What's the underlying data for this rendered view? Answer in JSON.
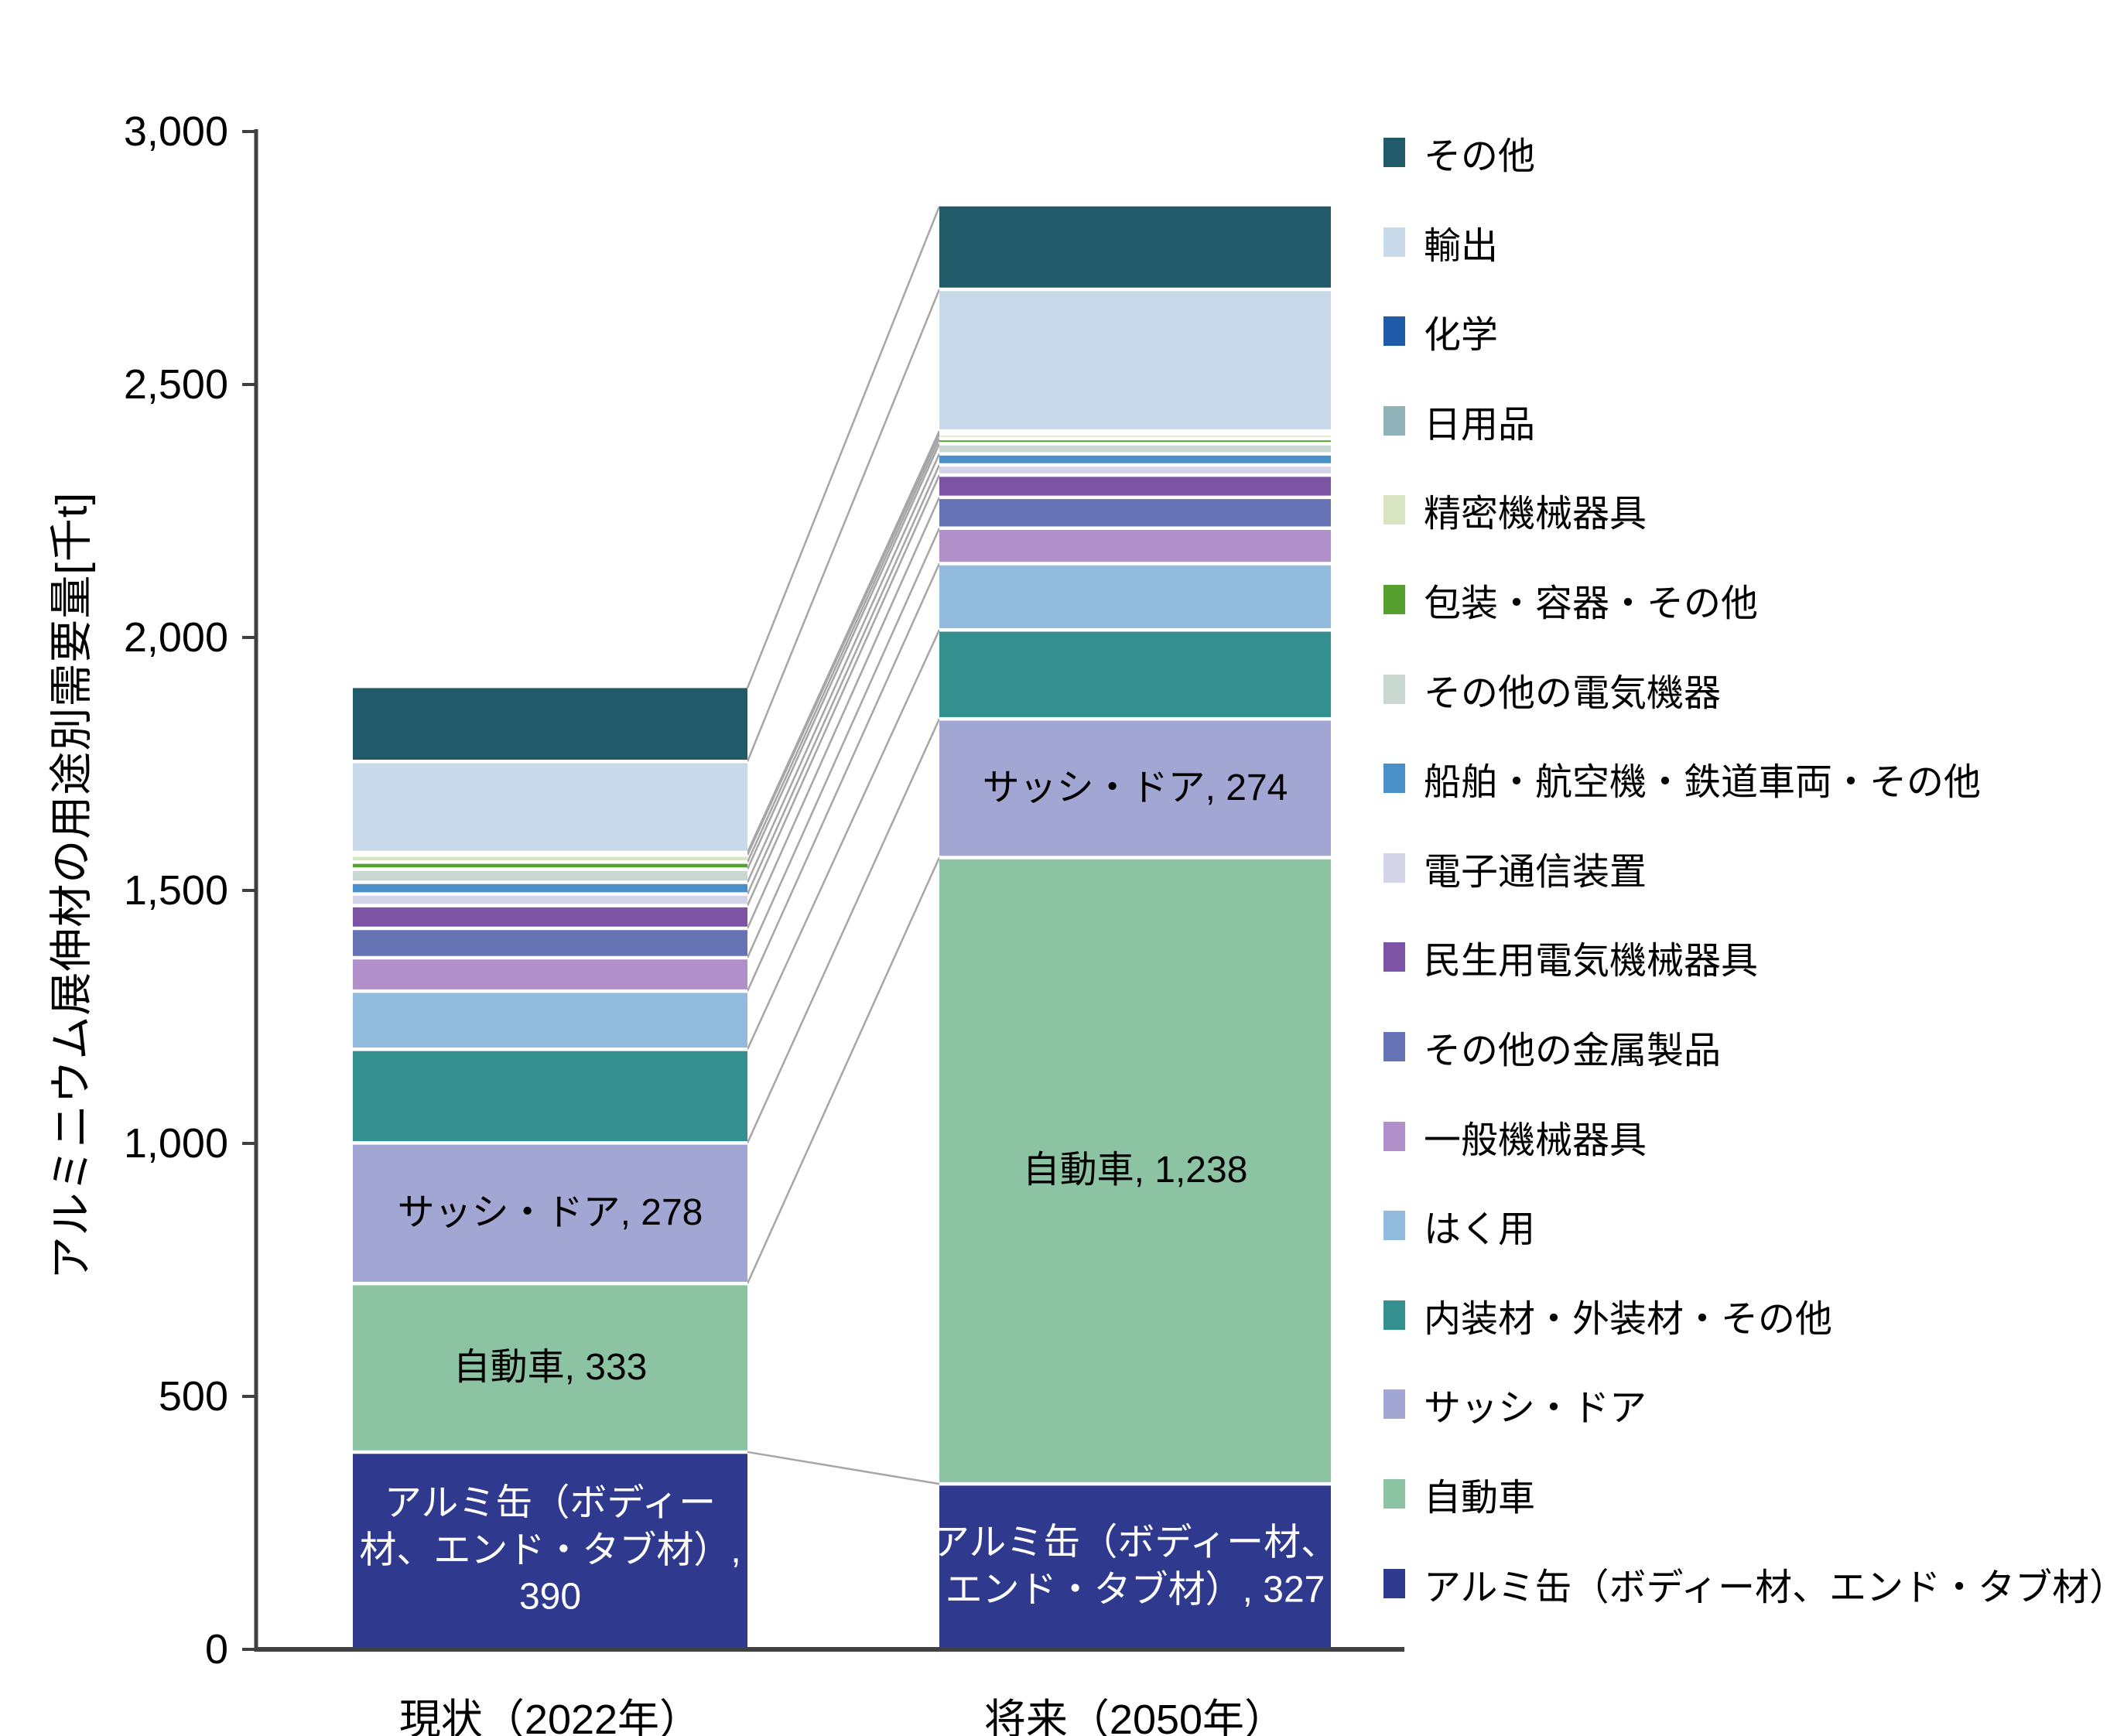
{
  "chart_data": {
    "type": "stacked-bar",
    "unit": "千t",
    "categories": [
      "現状（2022年）",
      "将来（2050年）"
    ],
    "yaxis": {
      "label": "アルミニウム展伸材の用途別需要量[千t]",
      "min": 0,
      "max": 3000,
      "step": 500,
      "tick_labels": [
        "0",
        "500",
        "1,000",
        "1,500",
        "2,000",
        "2,500",
        "3,000"
      ]
    },
    "series": [
      {
        "name": "アルミ缶（ボディー材、エンド・タブ材）",
        "color": "#2F3A8F",
        "values": [
          390,
          327
        ],
        "labeled": true
      },
      {
        "name": "自動車",
        "color": "#8CC3A2",
        "values": [
          333,
          1238
        ],
        "labeled": true
      },
      {
        "name": "サッシ・ドア",
        "color": "#A1A6D3",
        "values": [
          278,
          274
        ],
        "labeled": true
      },
      {
        "name": "内装材・外装材・その他",
        "color": "#33908F",
        "values": [
          185,
          176
        ]
      },
      {
        "name": "はく用",
        "color": "#92BADD",
        "values": [
          115,
          131
        ]
      },
      {
        "name": "一般機械器具",
        "color": "#B18FC9",
        "values": [
          66,
          70
        ]
      },
      {
        "name": "その他の金属製品",
        "color": "#6673B5",
        "values": [
          58,
          61
        ]
      },
      {
        "name": "民生用電気機械器具",
        "color": "#7D53A6",
        "values": [
          45,
          44
        ]
      },
      {
        "name": "電子通信装置",
        "color": "#D4D4E9",
        "values": [
          23,
          20
        ]
      },
      {
        "name": "船舶・航空機・鉄道車両・その他",
        "color": "#4A90C8",
        "values": [
          23,
          22
        ]
      },
      {
        "name": "その他の電気機器",
        "color": "#C9D9D2",
        "values": [
          26,
          20
        ]
      },
      {
        "name": "包装・容器・その他",
        "color": "#55A02F",
        "values": [
          14,
          10
        ]
      },
      {
        "name": "精密機械器具",
        "color": "#D9E5C2",
        "values": [
          14,
          9
        ]
      },
      {
        "name": "日用品",
        "color": "#8FB3B8",
        "values": [
          3,
          4
        ]
      },
      {
        "name": "化学",
        "color": "#1F5BA8",
        "values": [
          2,
          2
        ]
      },
      {
        "name": "輸出",
        "color": "#C8DAE9",
        "values": [
          180,
          280
        ]
      },
      {
        "name": "その他",
        "color": "#215A69",
        "values": [
          145,
          164
        ]
      }
    ],
    "series_note": "values = [現状2022, 将来2050] in 千t; only アルミ缶/自動車/サッシ・ドア are labeled in the figure, remaining values estimated from bar pixel heights",
    "totals_estimated": [
      1900,
      2852
    ],
    "data_labels": [
      {
        "bar": 0,
        "series": "サッシ・ドア",
        "lines": [
          "サッシ・ドア, 278"
        ],
        "color": "#000000"
      },
      {
        "bar": 0,
        "series": "自動車",
        "lines": [
          "自動車, 333"
        ],
        "color": "#000000"
      },
      {
        "bar": 0,
        "series": "アルミ缶（ボディー材、エンド・タブ材）",
        "lines": [
          "アルミ缶（ボディー",
          "材、エンド・タブ材）,",
          "390"
        ],
        "color": "#FFFFFF"
      },
      {
        "bar": 1,
        "series": "サッシ・ドア",
        "lines": [
          "サッシ・ドア, 274"
        ],
        "color": "#000000"
      },
      {
        "bar": 1,
        "series": "自動車",
        "lines": [
          "自動車, 1,238"
        ],
        "color": "#000000"
      },
      {
        "bar": 1,
        "series": "アルミ缶（ボディー材、エンド・タブ材）",
        "lines": [
          "アルミ缶（ボディー材、",
          "エンド・タブ材）, 327"
        ],
        "color": "#FFFFFF"
      }
    ],
    "legend_position": "right",
    "legend_order": "top-to-bottom is reverse of stacking order",
    "grid": false,
    "connector_color": "#A6A6A6",
    "axis_color": "#404040"
  }
}
